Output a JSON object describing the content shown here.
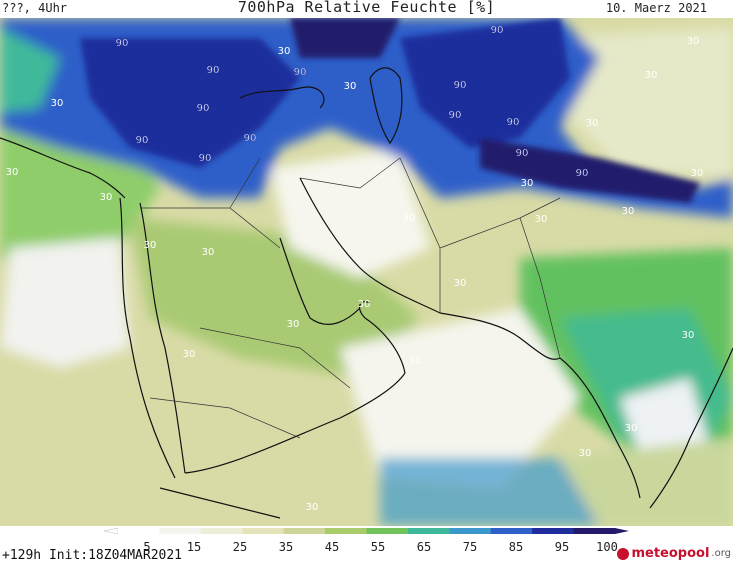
{
  "header": {
    "top_left": "???, 4Uhr",
    "title": "700hPa Relative Feuchte [%]",
    "date": "10. Maerz 2021"
  },
  "footer": {
    "run_info": "+129h  Init:18Z04MAR2021",
    "logo_text": "meteopool",
    "logo_suffix": ".org"
  },
  "colorbar": {
    "ticks": [
      "5",
      "15",
      "25",
      "35",
      "45",
      "55",
      "65",
      "75",
      "85",
      "95",
      "100"
    ],
    "colors": [
      "#ffffff",
      "#f4f4ee",
      "#eeeed8",
      "#e3e4b9",
      "#cfd596",
      "#aacb6a",
      "#72c35c",
      "#3fb99a",
      "#3c98cc",
      "#2f5fc9",
      "#1f2d9c",
      "#241a6c"
    ]
  },
  "map": {
    "contour_labels": [
      "90",
      "90",
      "90",
      "90",
      "90",
      "90",
      "90",
      "90",
      "90",
      "90",
      "90",
      "90",
      "90",
      "30",
      "30",
      "30",
      "30",
      "30",
      "30",
      "30",
      "30",
      "30",
      "30",
      "30",
      "30",
      "30",
      "30",
      "30",
      "30",
      "30",
      "30",
      "30",
      "30",
      "30",
      "30",
      "30",
      "30"
    ]
  }
}
